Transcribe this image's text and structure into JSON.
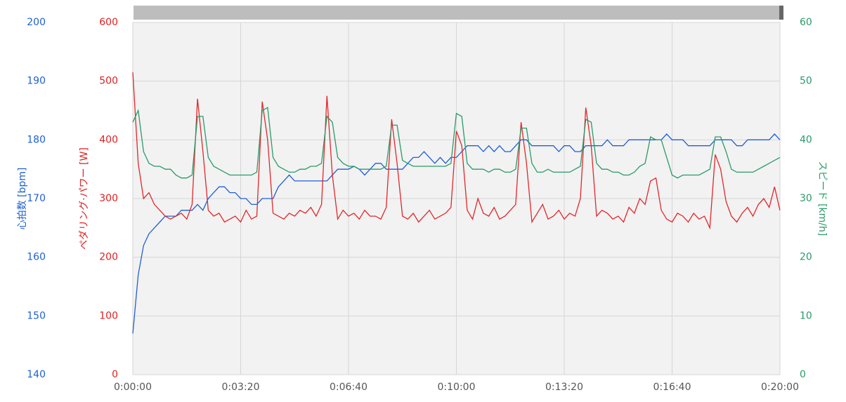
{
  "chart_data": {
    "type": "line",
    "x": [
      0,
      10,
      20,
      30,
      40,
      50,
      60,
      70,
      80,
      90,
      100,
      110,
      120,
      130,
      140,
      150,
      160,
      170,
      180,
      190,
      200,
      210,
      220,
      230,
      240,
      250,
      260,
      270,
      280,
      290,
      300,
      310,
      320,
      330,
      340,
      350,
      360,
      370,
      380,
      390,
      400,
      410,
      420,
      430,
      440,
      450,
      460,
      470,
      480,
      490,
      500,
      510,
      520,
      530,
      540,
      550,
      560,
      570,
      580,
      590,
      600,
      610,
      620,
      630,
      640,
      650,
      660,
      670,
      680,
      690,
      700,
      710,
      720,
      730,
      740,
      750,
      760,
      770,
      780,
      790,
      800,
      810,
      820,
      830,
      840,
      850,
      860,
      870,
      880,
      890,
      900,
      910,
      920,
      930,
      940,
      950,
      960,
      970,
      980,
      990,
      1000,
      1010,
      1020,
      1030,
      1040,
      1050,
      1060,
      1070,
      1080,
      1090,
      1100,
      1110,
      1120,
      1130,
      1140,
      1150,
      1160,
      1170,
      1180,
      1190,
      1200
    ],
    "xlim": [
      0,
      1200
    ],
    "xticks": [
      {
        "value": 0,
        "label": "0:00:00"
      },
      {
        "value": 200,
        "label": "0:03:20"
      },
      {
        "value": 400,
        "label": "0:06:40"
      },
      {
        "value": 600,
        "label": "0:10:00"
      },
      {
        "value": 800,
        "label": "0:13:20"
      },
      {
        "value": 1000,
        "label": "0:16:40"
      },
      {
        "value": 1200,
        "label": "0:20:00"
      }
    ],
    "ylabel": "心拍数 [bpm]",
    "ylim": [
      140,
      200
    ],
    "yticks": [
      140,
      150,
      160,
      170,
      180,
      190,
      200
    ],
    "ycolor": "#2060d0",
    "y2label": "ペダリング·パワー [W]",
    "y2lim": [
      0,
      600
    ],
    "y2ticks": [
      0,
      100,
      200,
      300,
      400,
      500,
      600
    ],
    "y2color": "#e02020",
    "y3label": "スピード [km/h]",
    "y3lim": [
      0,
      60
    ],
    "y3ticks": [
      0,
      10,
      20,
      30,
      40,
      50,
      60
    ],
    "y3color": "#2a9a6a",
    "grid": true,
    "series": [
      {
        "name": "心拍数",
        "axis": "y",
        "color": "#1f5fd6",
        "values": [
          147,
          157,
          162,
          164,
          165,
          166,
          167,
          167,
          167,
          168,
          168,
          168,
          169,
          168,
          170,
          171,
          172,
          172,
          171,
          171,
          170,
          170,
          169,
          169,
          170,
          170,
          170,
          172,
          173,
          174,
          173,
          173,
          173,
          173,
          173,
          173,
          173,
          174,
          175,
          175,
          175,
          175.5,
          175,
          174,
          175,
          176,
          176,
          175,
          175,
          175,
          175,
          176,
          177,
          177,
          178,
          177,
          176,
          177,
          176,
          177,
          177,
          178,
          179,
          179,
          179,
          178,
          179,
          178,
          179,
          178,
          178,
          179,
          180,
          180,
          179,
          179,
          179,
          179,
          179,
          178,
          179,
          179,
          178,
          178,
          179,
          179,
          179,
          179,
          180,
          179,
          179,
          179,
          180,
          180,
          180,
          180,
          180,
          180,
          180,
          181,
          180,
          180,
          180,
          179,
          179,
          179,
          179,
          179,
          180,
          180,
          180,
          180,
          179,
          179,
          180,
          180,
          180,
          180,
          180,
          181,
          180
        ]
      },
      {
        "name": "ペダリング·パワー",
        "axis": "y2",
        "color": "#e3262a",
        "values": [
          515,
          360,
          300,
          310,
          290,
          280,
          270,
          265,
          270,
          275,
          265,
          290,
          470,
          380,
          280,
          270,
          275,
          260,
          265,
          270,
          260,
          280,
          265,
          270,
          465,
          400,
          275,
          270,
          265,
          275,
          270,
          280,
          275,
          285,
          270,
          290,
          475,
          340,
          265,
          280,
          270,
          275,
          265,
          280,
          270,
          270,
          265,
          285,
          435,
          360,
          270,
          265,
          275,
          260,
          270,
          280,
          265,
          270,
          275,
          285,
          415,
          390,
          280,
          265,
          300,
          275,
          270,
          285,
          265,
          270,
          280,
          290,
          430,
          360,
          260,
          275,
          290,
          265,
          270,
          280,
          265,
          275,
          270,
          300,
          455,
          390,
          270,
          280,
          275,
          265,
          270,
          260,
          285,
          275,
          300,
          290,
          330,
          335,
          280,
          265,
          260,
          275,
          270,
          260,
          275,
          265,
          270,
          250,
          375,
          350,
          295,
          270,
          260,
          275,
          285,
          270,
          290,
          300,
          285,
          320,
          280
        ]
      },
      {
        "name": "スピード",
        "axis": "y3",
        "color": "#2a9a6a",
        "values": [
          43,
          45,
          38,
          36,
          35.5,
          35.5,
          35,
          35,
          34,
          33.5,
          33.5,
          34,
          44,
          44,
          37,
          35.5,
          35,
          34.5,
          34,
          34,
          34,
          34,
          34,
          34.5,
          45,
          45.5,
          37,
          35.5,
          35,
          34.5,
          34.5,
          35,
          35,
          35.5,
          35.5,
          36,
          44,
          43,
          37,
          36,
          35.5,
          35.5,
          35,
          35,
          35,
          35,
          35,
          35.5,
          42.5,
          42.5,
          36.5,
          36,
          35.5,
          35.5,
          35.5,
          35.5,
          35.5,
          35.5,
          35.5,
          36,
          44.5,
          44,
          36,
          35,
          35,
          35,
          34.5,
          35,
          35,
          34.5,
          34.5,
          35,
          42,
          42,
          36,
          34.5,
          34.5,
          35,
          34.5,
          34.5,
          34.5,
          34.5,
          35,
          35.5,
          43.5,
          43,
          36,
          35,
          35,
          34.5,
          34.5,
          34,
          34,
          34.5,
          35.5,
          36,
          40.5,
          40,
          40,
          37,
          34,
          33.5,
          34,
          34,
          34,
          34,
          34.5,
          35,
          40.5,
          40.5,
          38,
          35,
          34.5,
          34.5,
          34.5,
          34.5,
          35,
          35.5,
          36,
          36.5,
          37
        ]
      }
    ]
  }
}
